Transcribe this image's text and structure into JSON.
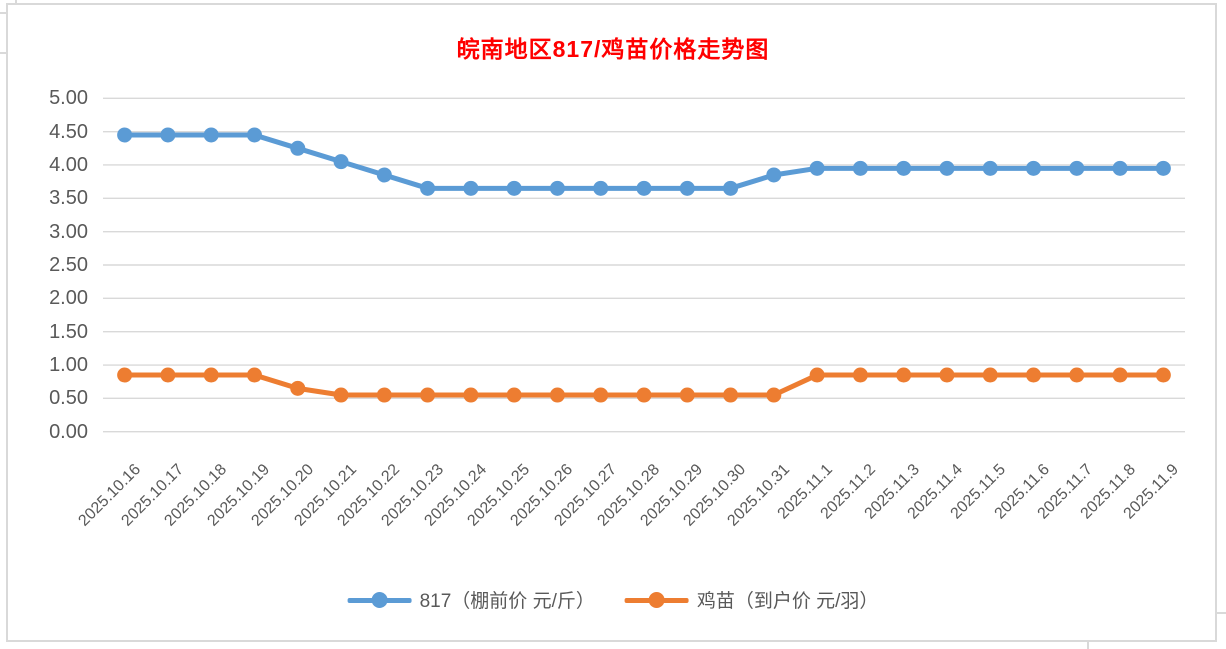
{
  "title": {
    "text": "皖南地区817/鸡苗价格走势图",
    "color": "#FF0000"
  },
  "chart_data": {
    "type": "line",
    "title": "皖南地区817/鸡苗价格走势图",
    "xlabel": "",
    "ylabel": "",
    "ylim": [
      0,
      5
    ],
    "ytick_labels": [
      "0.00",
      "0.50",
      "1.00",
      "1.50",
      "2.00",
      "2.50",
      "3.00",
      "3.50",
      "4.00",
      "4.50",
      "5.00"
    ],
    "grid": "horizontal",
    "legend_position": "bottom",
    "categories": [
      "2025.10.16",
      "2025.10.17",
      "2025.10.18",
      "2025.10.19",
      "2025.10.20",
      "2025.10.21",
      "2025.10.22",
      "2025.10.23",
      "2025.10.24",
      "2025.10.25",
      "2025.10.26",
      "2025.10.27",
      "2025.10.28",
      "2025.10.29",
      "2025.10.30",
      "2025.10.31",
      "2025.11.1",
      "2025.11.2",
      "2025.11.3",
      "2025.11.4",
      "2025.11.5",
      "2025.11.6",
      "2025.11.7",
      "2025.11.8",
      "2025.11.9"
    ],
    "series": [
      {
        "name": "817（棚前价 元/斤）",
        "color": "#5B9BD5",
        "values": [
          4.45,
          4.45,
          4.45,
          4.45,
          4.25,
          4.05,
          3.85,
          3.65,
          3.65,
          3.65,
          3.65,
          3.65,
          3.65,
          3.65,
          3.65,
          3.85,
          3.95,
          3.95,
          3.95,
          3.95,
          3.95,
          3.95,
          3.95,
          3.95,
          3.95
        ]
      },
      {
        "name": "鸡苗（到户价 元/羽）",
        "color": "#ED7D31",
        "values": [
          0.85,
          0.85,
          0.85,
          0.85,
          0.65,
          0.55,
          0.55,
          0.55,
          0.55,
          0.55,
          0.55,
          0.55,
          0.55,
          0.55,
          0.55,
          0.55,
          0.85,
          0.85,
          0.85,
          0.85,
          0.85,
          0.85,
          0.85,
          0.85,
          0.85
        ]
      }
    ]
  },
  "colors": {
    "grid": "#D9D9D9",
    "frame": "#D9D9D9",
    "axis_text": "#595959",
    "background": "#FFFFFF"
  }
}
